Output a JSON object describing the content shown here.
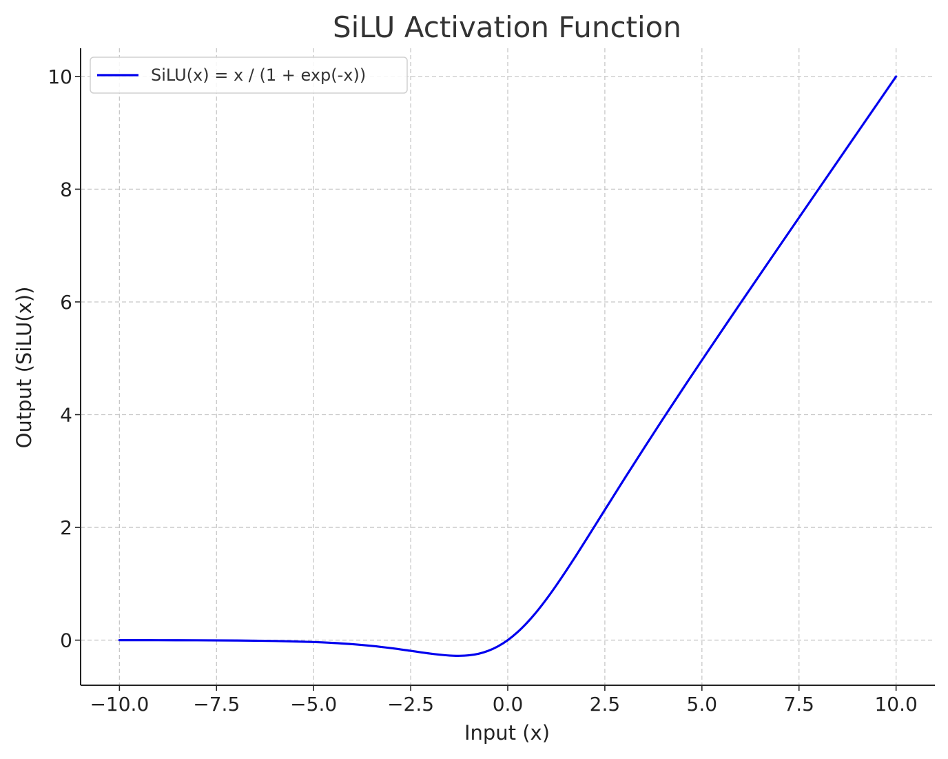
{
  "chart_data": {
    "type": "line",
    "title": "SiLU Activation Function",
    "xlabel": "Input (x)",
    "ylabel": "Output (SiLU(x))",
    "xlim": [
      -11.0,
      11.0
    ],
    "ylim": [
      -0.8,
      10.5
    ],
    "xticks": [
      -10.0,
      -7.5,
      -5.0,
      -2.5,
      0.0,
      2.5,
      5.0,
      7.5,
      10.0
    ],
    "xtick_labels": [
      "−10.0",
      "−7.5",
      "−5.0",
      "−2.5",
      "0.0",
      "2.5",
      "5.0",
      "7.5",
      "10.0"
    ],
    "yticks": [
      0,
      2,
      4,
      6,
      8,
      10
    ],
    "ytick_labels": [
      "0",
      "2",
      "4",
      "6",
      "8",
      "10"
    ],
    "grid": true,
    "legend_position": "top-left",
    "series": [
      {
        "name": "SiLU(x) = x / (1 + exp(-x))",
        "color": "#0000ee",
        "x": [
          -10.0,
          -9.0,
          -8.0,
          -7.0,
          -6.0,
          -5.0,
          -4.5,
          -4.0,
          -3.5,
          -3.0,
          -2.5,
          -2.0,
          -1.5,
          -1.25,
          -1.0,
          -0.75,
          -0.5,
          -0.25,
          0.0,
          0.25,
          0.5,
          0.75,
          1.0,
          1.25,
          1.5,
          1.75,
          2.0,
          2.5,
          3.0,
          3.5,
          4.0,
          4.5,
          5.0,
          6.0,
          7.0,
          8.0,
          9.0,
          10.0
        ],
        "y": [
          -0.0005,
          -0.0011,
          -0.0027,
          -0.0064,
          -0.0148,
          -0.0335,
          -0.0495,
          -0.0719,
          -0.1023,
          -0.1423,
          -0.1896,
          -0.2384,
          -0.2736,
          -0.2781,
          -0.2689,
          -0.2409,
          -0.1888,
          -0.1094,
          0.0,
          0.1406,
          0.3112,
          0.5091,
          0.7311,
          0.9719,
          1.2264,
          1.4906,
          1.7616,
          2.3104,
          2.8577,
          3.3965,
          3.9281,
          4.4502,
          4.9665,
          5.9852,
          6.9936,
          7.9973,
          8.9989,
          9.9995
        ]
      }
    ]
  }
}
